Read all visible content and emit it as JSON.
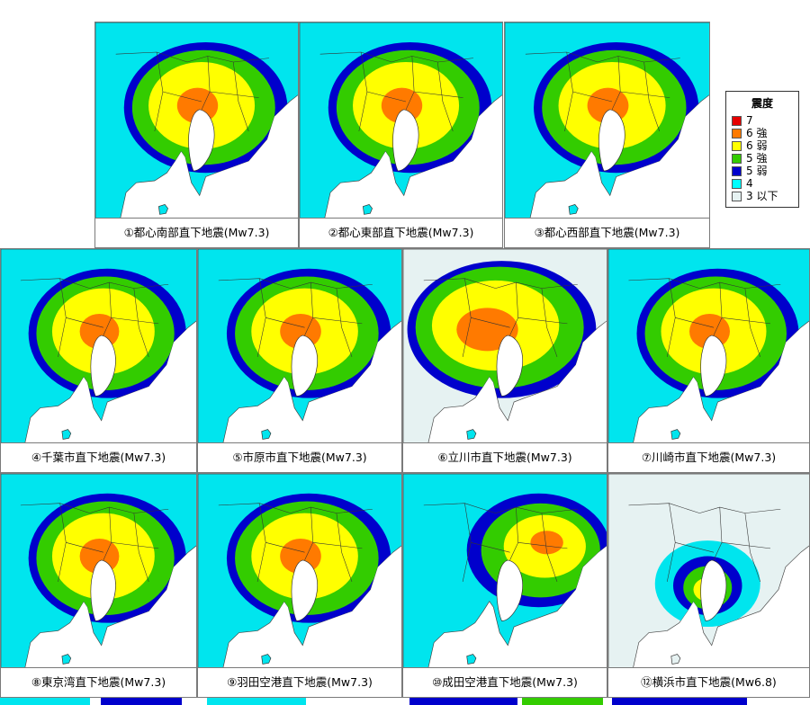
{
  "legend": {
    "title": "震度",
    "items": [
      {
        "label": "7",
        "color": "#e60000"
      },
      {
        "label": "6 強",
        "color": "#ff7a00"
      },
      {
        "label": "6 弱",
        "color": "#ffff00"
      },
      {
        "label": "5 強",
        "color": "#33cc00"
      },
      {
        "label": "5 弱",
        "color": "#0000cc"
      },
      {
        "label": "4",
        "color": "#00ffff"
      },
      {
        "label": "3 以下",
        "color": "#e6f2f2"
      }
    ]
  },
  "panels": [
    {
      "caption": "①都心南部直下地震(Mw7.3)",
      "variant": "standard"
    },
    {
      "caption": "②都心東部直下地震(Mw7.3)",
      "variant": "standard"
    },
    {
      "caption": "③都心西部直下地震(Mw7.3)",
      "variant": "standard"
    },
    {
      "caption": "④千葉市直下地震(Mw7.3)",
      "variant": "standard"
    },
    {
      "caption": "⑤市原市直下地震(Mw7.3)",
      "variant": "standard"
    },
    {
      "caption": "⑥立川市直下地震(Mw7.3)",
      "variant": "west"
    },
    {
      "caption": "⑦川崎市直下地震(Mw7.3)",
      "variant": "standard"
    },
    {
      "caption": "⑧東京湾直下地震(Mw7.3)",
      "variant": "standard"
    },
    {
      "caption": "⑨羽田空港直下地震(Mw7.3)",
      "variant": "standard"
    },
    {
      "caption": "⑩成田空港直下地震(Mw7.3)",
      "variant": "east"
    },
    {
      "caption": "⑫横浜市直下地震(Mw6.8)",
      "variant": "small"
    }
  ]
}
